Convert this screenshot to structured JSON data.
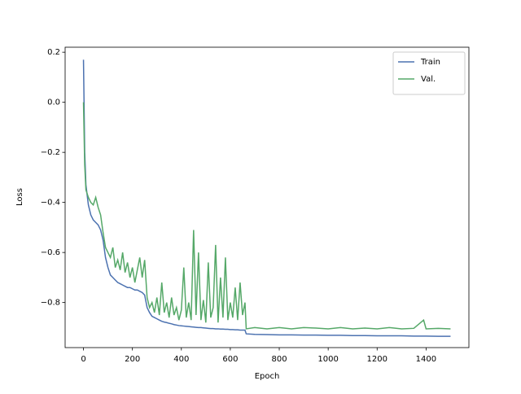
{
  "chart_data": {
    "type": "line",
    "xlabel": "Epoch",
    "ylabel": "Loss",
    "x": [
      0,
      5,
      10,
      20,
      30,
      40,
      50,
      60,
      70,
      80,
      90,
      100,
      110,
      120,
      130,
      140,
      150,
      160,
      170,
      180,
      190,
      200,
      210,
      220,
      230,
      240,
      250,
      260,
      270,
      280,
      290,
      300,
      310,
      320,
      330,
      340,
      350,
      360,
      370,
      380,
      390,
      400,
      410,
      420,
      430,
      440,
      450,
      460,
      470,
      480,
      490,
      500,
      510,
      520,
      530,
      540,
      550,
      560,
      570,
      580,
      590,
      600,
      610,
      620,
      630,
      640,
      650,
      660,
      665,
      700,
      750,
      800,
      850,
      900,
      950,
      1000,
      1050,
      1100,
      1150,
      1200,
      1250,
      1300,
      1350,
      1390,
      1400,
      1450,
      1500
    ],
    "series": [
      {
        "name": "Train",
        "color": "#4c72b0",
        "values": [
          0.17,
          -0.2,
          -0.33,
          -0.41,
          -0.45,
          -0.47,
          -0.48,
          -0.49,
          -0.51,
          -0.55,
          -0.62,
          -0.66,
          -0.69,
          -0.7,
          -0.71,
          -0.72,
          -0.725,
          -0.73,
          -0.735,
          -0.74,
          -0.74,
          -0.745,
          -0.75,
          -0.75,
          -0.755,
          -0.76,
          -0.77,
          -0.82,
          -0.84,
          -0.855,
          -0.86,
          -0.865,
          -0.87,
          -0.875,
          -0.878,
          -0.88,
          -0.883,
          -0.885,
          -0.888,
          -0.89,
          -0.892,
          -0.893,
          -0.894,
          -0.895,
          -0.896,
          -0.897,
          -0.898,
          -0.899,
          -0.9,
          -0.9,
          -0.901,
          -0.902,
          -0.903,
          -0.904,
          -0.904,
          -0.905,
          -0.905,
          -0.906,
          -0.906,
          -0.907,
          -0.907,
          -0.908,
          -0.908,
          -0.909,
          -0.909,
          -0.91,
          -0.91,
          -0.91,
          -0.925,
          -0.927,
          -0.928,
          -0.929,
          -0.929,
          -0.93,
          -0.93,
          -0.931,
          -0.931,
          -0.932,
          -0.932,
          -0.933,
          -0.933,
          -0.933,
          -0.934,
          -0.934,
          -0.934,
          -0.935,
          -0.935
        ]
      },
      {
        "name": "Val.",
        "color": "#55a868",
        "values": [
          0.0,
          -0.25,
          -0.35,
          -0.38,
          -0.4,
          -0.41,
          -0.38,
          -0.42,
          -0.45,
          -0.52,
          -0.58,
          -0.6,
          -0.62,
          -0.58,
          -0.66,
          -0.63,
          -0.67,
          -0.6,
          -0.68,
          -0.64,
          -0.7,
          -0.66,
          -0.72,
          -0.67,
          -0.62,
          -0.7,
          -0.63,
          -0.78,
          -0.82,
          -0.8,
          -0.84,
          -0.78,
          -0.85,
          -0.72,
          -0.84,
          -0.8,
          -0.86,
          -0.78,
          -0.85,
          -0.82,
          -0.87,
          -0.83,
          -0.66,
          -0.86,
          -0.8,
          -0.87,
          -0.51,
          -0.85,
          -0.6,
          -0.87,
          -0.79,
          -0.88,
          -0.64,
          -0.86,
          -0.82,
          -0.57,
          -0.88,
          -0.7,
          -0.86,
          -0.62,
          -0.87,
          -0.8,
          -0.86,
          -0.74,
          -0.87,
          -0.72,
          -0.85,
          -0.8,
          -0.905,
          -0.9,
          -0.905,
          -0.9,
          -0.905,
          -0.9,
          -0.902,
          -0.905,
          -0.9,
          -0.905,
          -0.902,
          -0.905,
          -0.9,
          -0.905,
          -0.903,
          -0.87,
          -0.905,
          -0.903,
          -0.905
        ]
      }
    ],
    "xlim": [
      -75,
      1575
    ],
    "xticks": [
      0,
      200,
      400,
      600,
      800,
      1000,
      1200,
      1400
    ],
    "ylim": [
      -0.98,
      0.22
    ],
    "yticks": [
      {
        "value": -0.8,
        "label": "−0.8"
      },
      {
        "value": -0.6,
        "label": "−0.6"
      },
      {
        "value": -0.4,
        "label": "−0.4"
      },
      {
        "value": -0.2,
        "label": "−0.2"
      },
      {
        "value": 0,
        "label": "0.0"
      },
      0.2
    ],
    "legend": "upper right"
  }
}
